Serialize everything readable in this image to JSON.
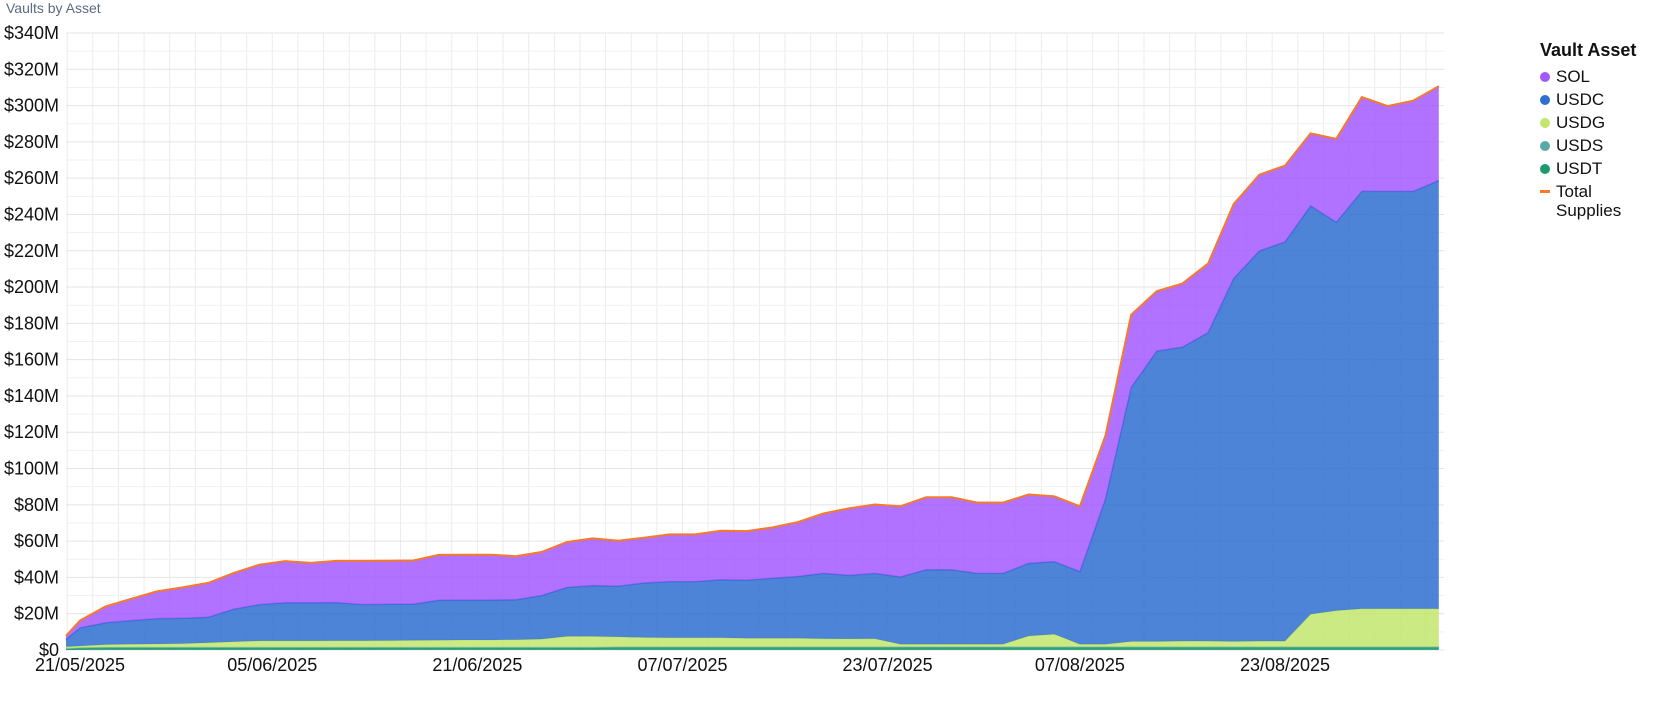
{
  "panel": {
    "title": "Vaults by Asset"
  },
  "legend": {
    "title": "Vault Asset",
    "items": [
      {
        "label": "SOL",
        "color": "#a259ff",
        "kind": "dot"
      },
      {
        "label": "USDC",
        "color": "#2f6fd0",
        "kind": "dot"
      },
      {
        "label": "USDG",
        "color": "#c3e66e",
        "kind": "dot"
      },
      {
        "label": "USDS",
        "color": "#59aaa6",
        "kind": "dot"
      },
      {
        "label": "USDT",
        "color": "#1e9a6c",
        "kind": "dot"
      },
      {
        "label": "Total\nSupplies",
        "color": "#f57a2a",
        "kind": "line"
      }
    ]
  },
  "chart_data": {
    "type": "area",
    "stacked": true,
    "x_start": "21/05/2025",
    "x_end": "01/09/2025",
    "x_ticks": [
      "21/05/2025",
      "05/06/2025",
      "21/06/2025",
      "07/07/2025",
      "23/07/2025",
      "07/08/2025",
      "23/08/2025"
    ],
    "y_ticks": [
      "$0",
      "$20M",
      "$40M",
      "$60M",
      "$80M",
      "$100M",
      "$120M",
      "$140M",
      "$160M",
      "$180M",
      "$200M",
      "$220M",
      "$240M",
      "$260M",
      "$280M",
      "$300M",
      "$320M",
      "$340M"
    ],
    "ylim": [
      0,
      340
    ],
    "y_unit": "M",
    "grid": true,
    "legend_position": "right",
    "x": [
      "19/05/2025",
      "21/05/2025",
      "23/05/2025",
      "25/05/2025",
      "27/05/2025",
      "29/05/2025",
      "31/05/2025",
      "02/06/2025",
      "04/06/2025",
      "06/06/2025",
      "08/06/2025",
      "10/06/2025",
      "12/06/2025",
      "14/06/2025",
      "16/06/2025",
      "18/06/2025",
      "20/06/2025",
      "22/06/2025",
      "24/06/2025",
      "26/06/2025",
      "28/06/2025",
      "30/06/2025",
      "02/07/2025",
      "04/07/2025",
      "06/07/2025",
      "08/07/2025",
      "10/07/2025",
      "12/07/2025",
      "14/07/2025",
      "16/07/2025",
      "18/07/2025",
      "20/07/2025",
      "22/07/2025",
      "24/07/2025",
      "26/07/2025",
      "28/07/2025",
      "30/07/2025",
      "01/08/2025",
      "03/08/2025",
      "05/08/2025",
      "07/08/2025",
      "09/08/2025",
      "11/08/2025",
      "13/08/2025",
      "15/08/2025",
      "17/08/2025",
      "19/08/2025",
      "21/08/2025",
      "23/08/2025",
      "25/08/2025",
      "27/08/2025",
      "29/08/2025",
      "31/08/2025",
      "02/09/2025",
      "04/09/2025"
    ],
    "series": [
      {
        "name": "USDT",
        "color": "#1e9a6c",
        "values": [
          0.5,
          0.8,
          1,
          1,
          1,
          1,
          1,
          1,
          1,
          1,
          1,
          1,
          1,
          1,
          1,
          1,
          1,
          1,
          1,
          1,
          1,
          1,
          1.2,
          1.2,
          1.2,
          1.2,
          1.2,
          1.2,
          1.2,
          1.2,
          1.2,
          1.2,
          1.2,
          1.2,
          1.2,
          1.2,
          1.2,
          1.2,
          1.2,
          1.2,
          1.2,
          1.2,
          1.2,
          1.2,
          1.2,
          1.2,
          1.2,
          1.2,
          1.2,
          1.2,
          1.2,
          1.2,
          1.2,
          1.2,
          1.2
        ]
      },
      {
        "name": "USDS",
        "color": "#59aaa6",
        "values": [
          0.3,
          0.4,
          0.5,
          0.5,
          0.5,
          0.5,
          0.5,
          0.5,
          0.5,
          0.5,
          0.5,
          0.5,
          0.5,
          0.5,
          0.5,
          0.5,
          0.5,
          0.5,
          0.5,
          0.5,
          0.5,
          0.5,
          0.5,
          0.5,
          0.5,
          0.5,
          0.5,
          0.5,
          0.5,
          0.5,
          0.5,
          0.5,
          0.5,
          0.5,
          0.5,
          0.5,
          0.5,
          0.5,
          0.5,
          0.5,
          0.5,
          0.5,
          0.5,
          0.5,
          0.5,
          0.5,
          0.5,
          0.5,
          0.5,
          0.5,
          0.5,
          0.5,
          0.5,
          0.5,
          0.5
        ]
      },
      {
        "name": "USDG",
        "color": "#c3e66e",
        "values": [
          1,
          1,
          1.5,
          1.7,
          1.8,
          2,
          2.5,
          3,
          3.5,
          3.5,
          3.5,
          3.6,
          3.6,
          3.7,
          3.8,
          3.9,
          4,
          4,
          4.2,
          4.5,
          6,
          6,
          5.5,
          5.2,
          5,
          5,
          5,
          4.8,
          4.8,
          4.8,
          4.5,
          4.4,
          4.5,
          1.5,
          1.5,
          1.5,
          1.5,
          1.5,
          6,
          7,
          1.5,
          1.5,
          3,
          3,
          3.2,
          3.2,
          3,
          3.2,
          3.2,
          18,
          20,
          21,
          21,
          21,
          21
        ]
      },
      {
        "name": "USDC",
        "color": "#2f6fd0",
        "values": [
          4,
          10,
          12,
          13,
          14,
          14,
          14,
          18,
          20,
          21,
          21,
          21,
          20,
          20,
          20,
          22,
          22,
          22,
          22,
          24,
          27,
          28,
          28,
          30,
          31,
          31,
          32,
          32,
          33,
          34,
          36,
          35,
          36,
          37,
          41,
          41,
          39,
          39,
          40,
          40,
          40,
          80,
          140,
          160,
          162,
          170,
          200,
          215,
          220,
          225,
          214,
          230,
          230,
          230,
          236
        ]
      },
      {
        "name": "SOL",
        "color": "#a259ff",
        "values": [
          2,
          4,
          9,
          12,
          15,
          17,
          19,
          20,
          22,
          23,
          22,
          23,
          24,
          24,
          24,
          25,
          25,
          25,
          24,
          24,
          25,
          26,
          25,
          25,
          26,
          26,
          27,
          27,
          28,
          30,
          33,
          37,
          38,
          39,
          40,
          40,
          39,
          39,
          38,
          36,
          36,
          35,
          40,
          33,
          35,
          38,
          41,
          42,
          42,
          40,
          46,
          52,
          47,
          50,
          52
        ]
      }
    ],
    "total_series": {
      "name": "Total Supplies",
      "color": "#f57a2a"
    }
  }
}
